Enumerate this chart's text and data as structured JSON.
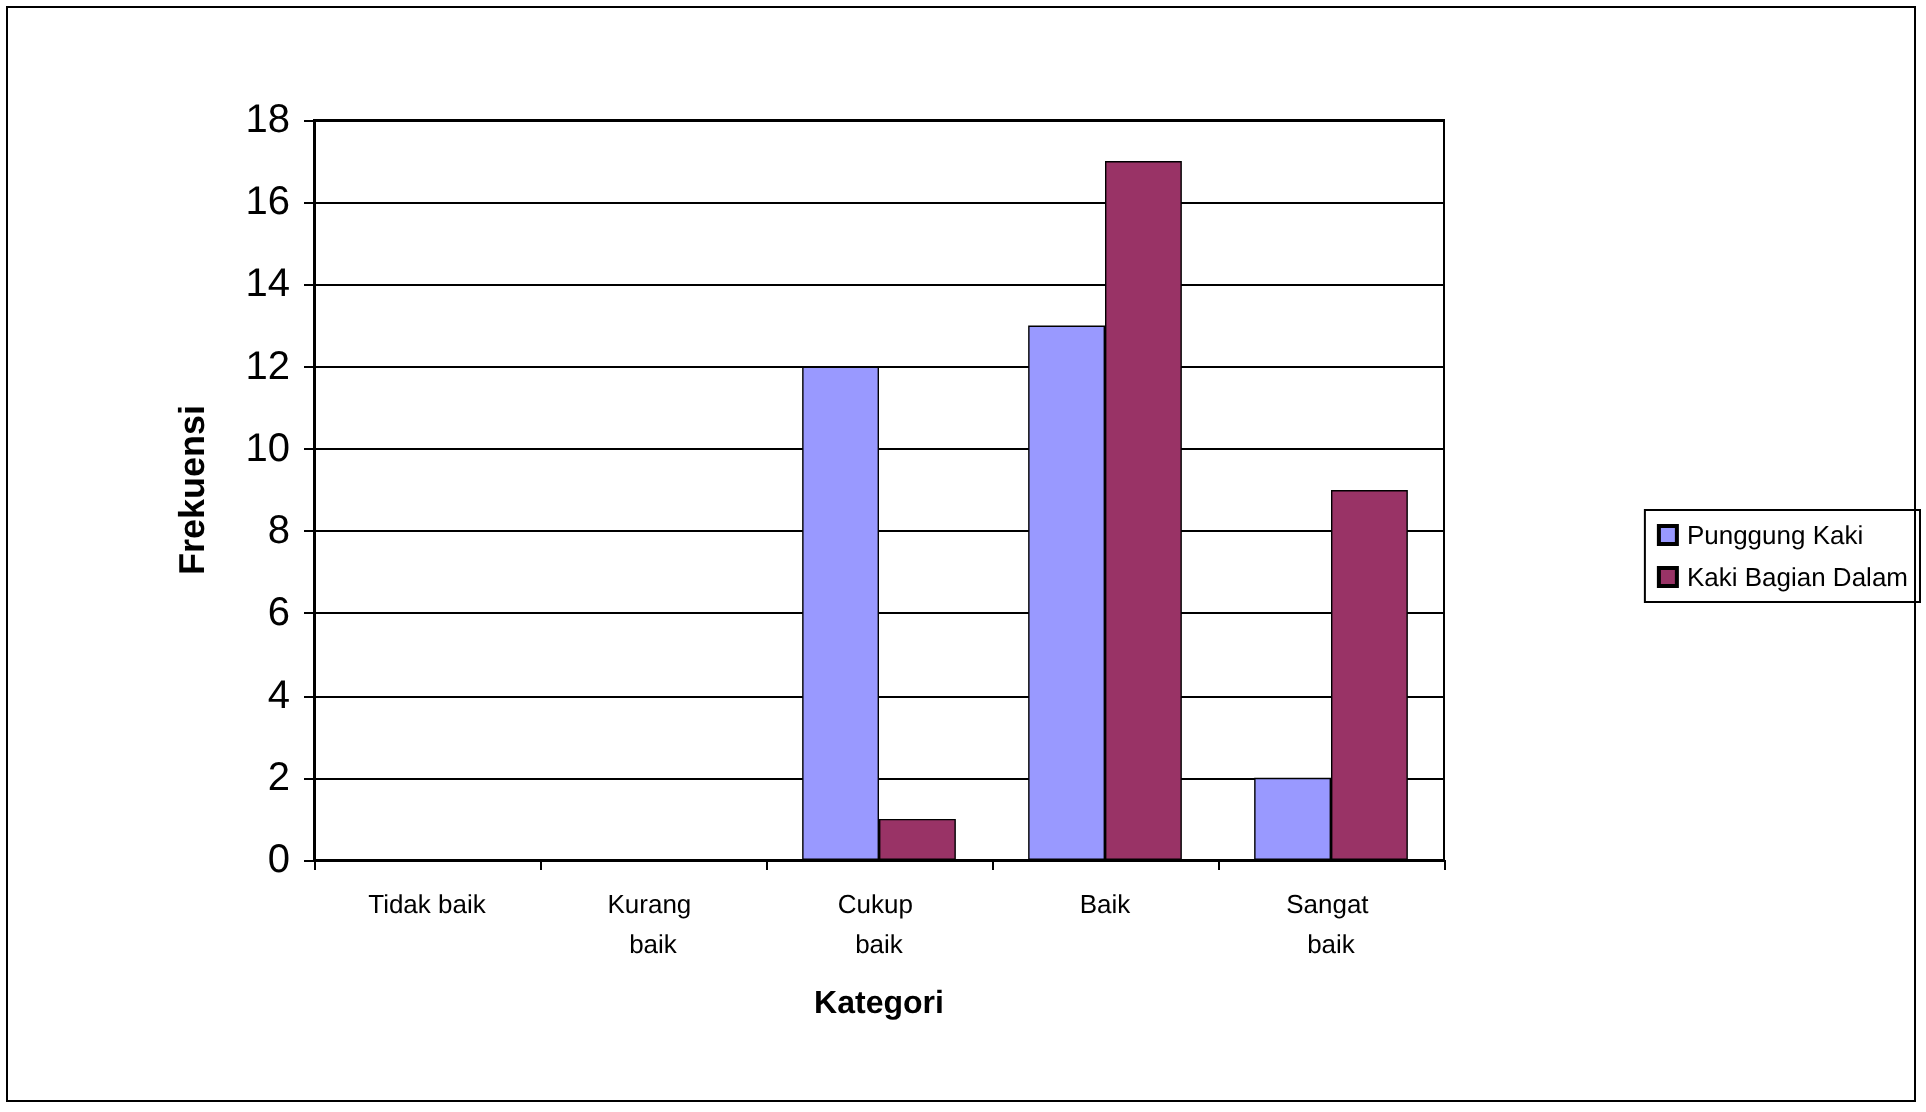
{
  "chart_data": {
    "type": "bar",
    "xlabel": "Kategori",
    "ylabel": "Frekuensi",
    "categories": [
      "Tidak baik",
      "Kurang baik",
      "Cukup baik",
      "Baik",
      "Sangat baik"
    ],
    "series": [
      {
        "name": "Punggung Kaki",
        "color": "#9999ff",
        "values": [
          0,
          0,
          12,
          13,
          2
        ]
      },
      {
        "name": "Kaki Bagian Dalam",
        "color": "#993366",
        "values": [
          0,
          0,
          1,
          17,
          9
        ]
      }
    ],
    "ylim": [
      0,
      18
    ],
    "yticks": [
      0,
      2,
      4,
      6,
      8,
      10,
      12,
      14,
      16,
      18
    ],
    "grid": "y",
    "legend": "right"
  }
}
